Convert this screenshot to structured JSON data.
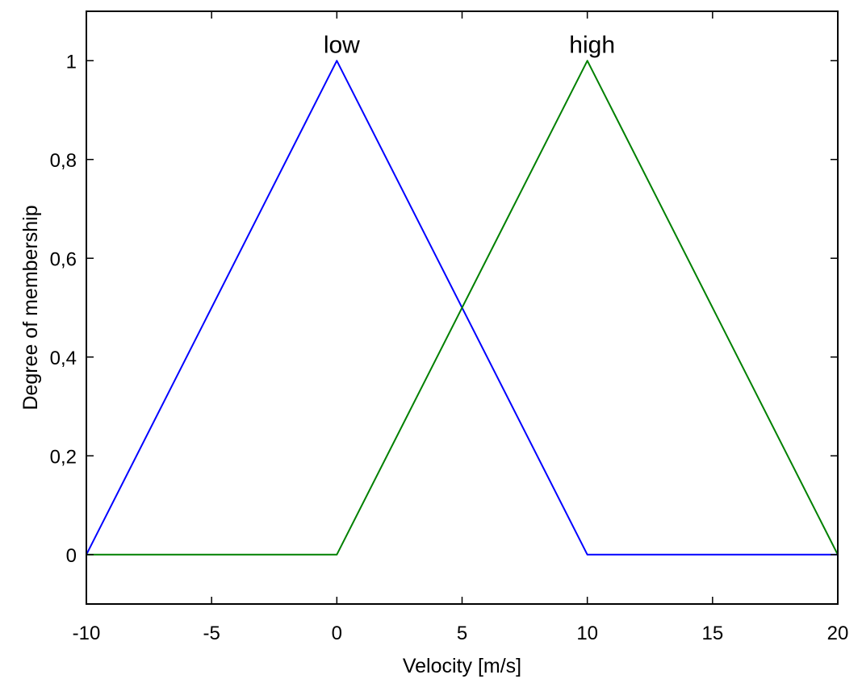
{
  "chart_data": {
    "type": "line",
    "title": "",
    "xlabel": "Velocity [m/s]",
    "ylabel": "Degree of membership",
    "xlim": [
      -10,
      20
    ],
    "ylim": [
      -0.1,
      1.1
    ],
    "grid": false,
    "legend": "none",
    "xticks": [
      -10,
      -5,
      0,
      5,
      10,
      15,
      20
    ],
    "xtick_labels": [
      "-10",
      "-5",
      "0",
      "5",
      "10",
      "15",
      "20"
    ],
    "yticks": [
      0,
      0.2,
      0.4,
      0.6,
      0.8,
      1
    ],
    "ytick_labels": [
      "0",
      "0,2",
      "0,4",
      "0,6",
      "0,8",
      "1"
    ],
    "series": [
      {
        "name": "low",
        "color": "#0000ff",
        "x": [
          -10,
          0,
          10,
          20
        ],
        "y": [
          0,
          1,
          0,
          0
        ]
      },
      {
        "name": "high",
        "color": "#008000",
        "x": [
          -10,
          0,
          10,
          20
        ],
        "y": [
          0,
          0,
          1,
          0
        ]
      }
    ],
    "annotations": [
      {
        "text": "low",
        "x": 0,
        "y": 1
      },
      {
        "text": "high",
        "x": 10,
        "y": 1
      }
    ]
  }
}
